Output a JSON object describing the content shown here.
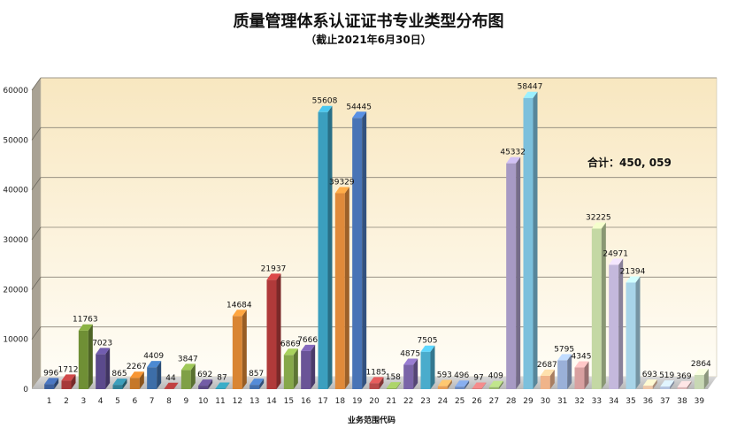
{
  "chart_data": {
    "type": "bar",
    "title": "质量管理体系认证证书专业类型分布图",
    "subtitle": "（截止2021年6月30日）",
    "xlabel": "业务范围代码",
    "ylabel": "",
    "ylim": [
      0,
      60000
    ],
    "yticks": [
      0,
      10000,
      20000,
      30000,
      40000,
      50000,
      60000
    ],
    "categories": [
      "1",
      "2",
      "3",
      "4",
      "5",
      "6",
      "7",
      "8",
      "9",
      "10",
      "11",
      "12",
      "13",
      "14",
      "15",
      "16",
      "17",
      "18",
      "19",
      "20",
      "21",
      "22",
      "23",
      "24",
      "25",
      "26",
      "27",
      "28",
      "29",
      "30",
      "31",
      "32",
      "33",
      "34",
      "35",
      "36",
      "37",
      "38",
      "39"
    ],
    "values": [
      996,
      1712,
      11763,
      7023,
      865,
      2267,
      4409,
      44,
      3847,
      692,
      87,
      14684,
      857,
      21937,
      6869,
      7666,
      55608,
      39329,
      54445,
      1185,
      158,
      4875,
      7505,
      593,
      496,
      97,
      409,
      45332,
      58447,
      2687,
      5795,
      4345,
      32225,
      24971,
      21394,
      693,
      519,
      369,
      2864
    ],
    "colors": [
      "#3b5f9c",
      "#a73a3a",
      "#6f8f35",
      "#5b4a8c",
      "#2f7f96",
      "#c67828",
      "#3d6ea8",
      "#9a3434",
      "#7fa046",
      "#5c4a85",
      "#2e8aa0",
      "#d98533",
      "#4470ad",
      "#b03a3a",
      "#86a84a",
      "#6a5497",
      "#3b9fbf",
      "#e08a3a",
      "#4874b6",
      "#b84a4a",
      "#8aaa55",
      "#7a64a8",
      "#4aaccc",
      "#e8a05a",
      "#6d8cc0",
      "#c47070",
      "#9ab870",
      "#a79ac4",
      "#7cc0dc",
      "#f0b48a",
      "#9ab0d8",
      "#d8a0a0",
      "#c4d8a4",
      "#c4b8dc",
      "#a8d4e8",
      "#f0c8a8",
      "#b4c4e0",
      "#dcb8b8",
      "#c8d8b4"
    ],
    "total_label": "合计：450, 059",
    "grid": true,
    "legend": "none"
  }
}
